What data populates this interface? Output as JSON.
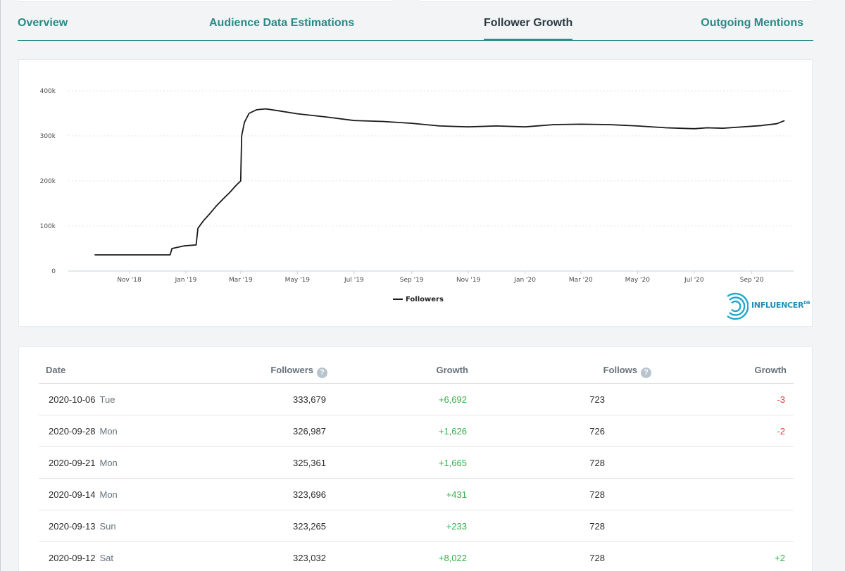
{
  "tabs": [
    {
      "label": "Overview"
    },
    {
      "label": "Audience Data Estimations"
    },
    {
      "label": "Follower Growth"
    },
    {
      "label": "Outgoing Mentions"
    }
  ],
  "active_tab": "Follower Growth",
  "chart_data": {
    "type": "line",
    "y_ticks": [
      "0",
      "100k",
      "200k",
      "300k",
      "400k"
    ],
    "ylim": [
      0,
      400000
    ],
    "x_ticks": [
      "Nov '18",
      "Jan '19",
      "Mar '19",
      "May '19",
      "Jul '19",
      "Sep '19",
      "Nov '19",
      "Jan '20",
      "Mar '20",
      "May '20",
      "Jul '20",
      "Sep '20"
    ],
    "grid": true,
    "legend_position": "bottom-center",
    "series": [
      {
        "name": "Followers",
        "color": "#1a1a1a",
        "x": [
          "2018-09-25",
          "2018-12-15",
          "2018-12-17",
          "2018-12-30",
          "2019-01-12",
          "2019-01-14",
          "2019-01-20",
          "2019-01-27",
          "2019-02-03",
          "2019-02-10",
          "2019-02-17",
          "2019-02-24",
          "2019-03-01",
          "2019-03-02",
          "2019-03-05",
          "2019-03-10",
          "2019-03-18",
          "2019-03-28",
          "2019-04-10",
          "2019-05-01",
          "2019-06-01",
          "2019-07-01",
          "2019-08-01",
          "2019-09-01",
          "2019-10-01",
          "2019-11-01",
          "2019-12-01",
          "2020-01-01",
          "2020-02-01",
          "2020-03-01",
          "2020-04-01",
          "2020-05-01",
          "2020-06-01",
          "2020-07-01",
          "2020-07-15",
          "2020-08-01",
          "2020-09-12",
          "2020-09-14",
          "2020-09-21",
          "2020-09-28",
          "2020-10-06"
        ],
        "values": [
          36000,
          36000,
          50000,
          56000,
          58000,
          95000,
          112000,
          128000,
          145000,
          160000,
          174000,
          190000,
          200000,
          300000,
          330000,
          350000,
          358000,
          360000,
          356000,
          349000,
          342000,
          334000,
          332000,
          328000,
          322000,
          320000,
          322000,
          320000,
          325000,
          326000,
          325000,
          322000,
          318000,
          316000,
          318000,
          317000,
          323032,
          323696,
          325361,
          326987,
          333679
        ]
      }
    ]
  },
  "logo": {
    "text": "INFLUENCER",
    "sup": "DB"
  },
  "table": {
    "headers": {
      "date": "Date",
      "followers": "Followers",
      "growth": "Growth",
      "follows": "Follows",
      "growth2": "Growth"
    },
    "help_glyph": "?",
    "rows": [
      {
        "date": "2020-10-06",
        "dow": "Tue",
        "followers": "333,679",
        "growth": "+6,692",
        "follows": "723",
        "follows_growth": "-3"
      },
      {
        "date": "2020-09-28",
        "dow": "Mon",
        "followers": "326,987",
        "growth": "+1,626",
        "follows": "726",
        "follows_growth": "-2"
      },
      {
        "date": "2020-09-21",
        "dow": "Mon",
        "followers": "325,361",
        "growth": "+1,665",
        "follows": "728",
        "follows_growth": ""
      },
      {
        "date": "2020-09-14",
        "dow": "Mon",
        "followers": "323,696",
        "growth": "+431",
        "follows": "728",
        "follows_growth": ""
      },
      {
        "date": "2020-09-13",
        "dow": "Sun",
        "followers": "323,265",
        "growth": "+233",
        "follows": "728",
        "follows_growth": ""
      },
      {
        "date": "2020-09-12",
        "dow": "Sat",
        "followers": "323,032",
        "growth": "+8,022",
        "follows": "728",
        "follows_growth": "+2"
      }
    ]
  }
}
